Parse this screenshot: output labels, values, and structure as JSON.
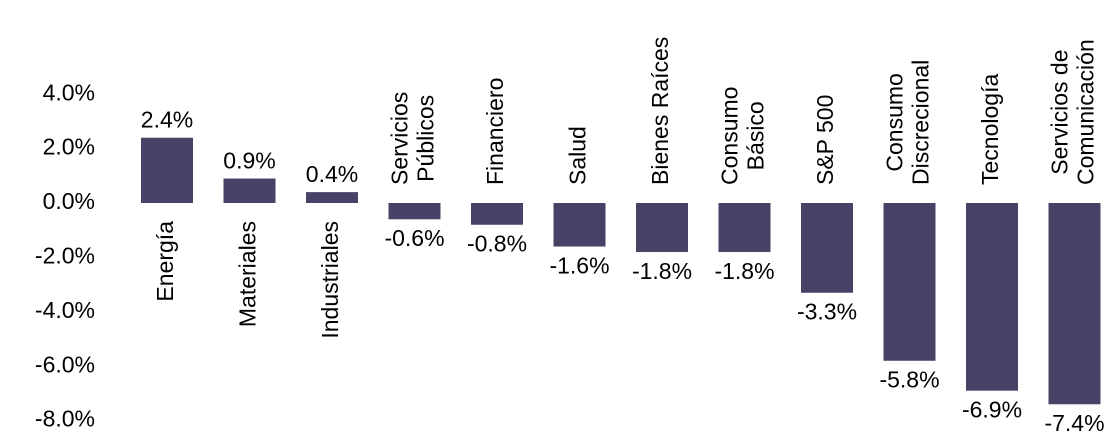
{
  "chart_data": {
    "type": "bar",
    "title": "",
    "xlabel": "",
    "ylabel": "",
    "ylim": [
      -8,
      4
    ],
    "yticks": [
      4,
      2,
      0,
      -2,
      -4,
      -6,
      -8
    ],
    "ytick_labels": [
      "4.0%",
      "2.0%",
      "0.0%",
      "-2.0%",
      "-4.0%",
      "-6.0%",
      "-8.0%"
    ],
    "grid": false,
    "legend": "none",
    "bar_color": "#464366",
    "categories": [
      [
        "Energía"
      ],
      [
        "Materiales"
      ],
      [
        "Industriales"
      ],
      [
        "Servicios",
        "Públicos"
      ],
      [
        "Financiero"
      ],
      [
        "Salud"
      ],
      [
        "Bienes Raíces"
      ],
      [
        "Consumo",
        "Básico"
      ],
      [
        "S&P 500"
      ],
      [
        "Consumo",
        "Discrecional"
      ],
      [
        "Tecnología"
      ],
      [
        "Servicios de",
        "Comunicación"
      ]
    ],
    "values": [
      2.4,
      0.9,
      0.4,
      -0.6,
      -0.8,
      -1.6,
      -1.8,
      -1.8,
      -3.3,
      -5.8,
      -6.9,
      -7.4
    ],
    "value_labels": [
      "2.4%",
      "0.9%",
      "0.4%",
      "-0.6%",
      "-0.8%",
      "-1.6%",
      "-1.8%",
      "-1.8%",
      "-3.3%",
      "-5.8%",
      "-6.9%",
      "-7.4%"
    ]
  }
}
